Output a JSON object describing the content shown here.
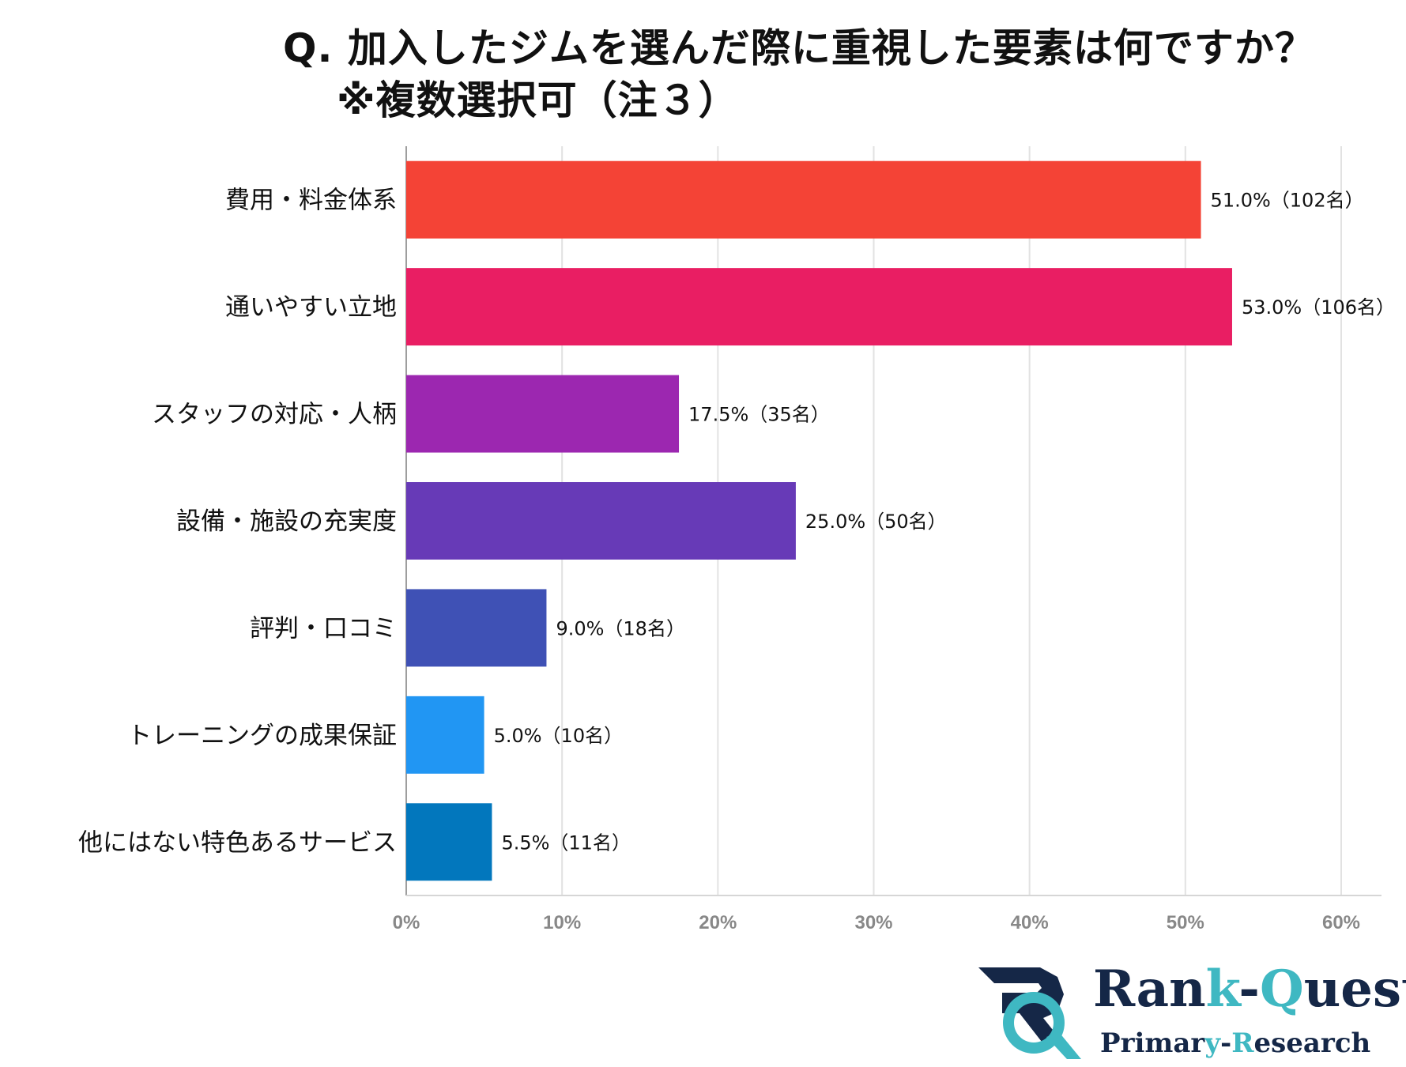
{
  "title": {
    "line1": "Q. 加入したジムを選んだ際に重視した要素は何ですか？",
    "line2": "※複数選択可（注３）"
  },
  "chart_data": {
    "type": "bar",
    "orientation": "horizontal",
    "categories": [
      "費用・料金体系",
      "通いやすい立地",
      "スタッフの対応・人柄",
      "設備・施設の充実度",
      "評判・口コミ",
      "トレーニングの成果保証",
      "他にはない特色あるサービス"
    ],
    "values": [
      51.0,
      53.0,
      17.5,
      25.0,
      9.0,
      5.0,
      5.5
    ],
    "data_labels": [
      "51.0%（102名）",
      "53.0%（106名）",
      "17.5%（35名）",
      "25.0%（50名）",
      "9.0%（18名）",
      "5.0%（10名）",
      "5.5%（11名）"
    ],
    "colors": [
      "#f44336",
      "#e91e63",
      "#9c27b0",
      "#673ab7",
      "#3f51b5",
      "#2196f3",
      "#0277bd"
    ],
    "xlim": [
      0,
      60
    ],
    "xticks": [
      "0%",
      "10%",
      "20%",
      "30%",
      "40%",
      "50%",
      "60%"
    ],
    "grid": true,
    "xlabel": "",
    "ylabel": ""
  },
  "logo": {
    "main_a": "Ran",
    "main_b": "k",
    "main_c": "-",
    "main_d": "Q",
    "main_e": "uest",
    "sub_a": "Primar",
    "sub_b": "y",
    "sub_c": "-",
    "sub_d": "R",
    "sub_e": "esearch"
  }
}
